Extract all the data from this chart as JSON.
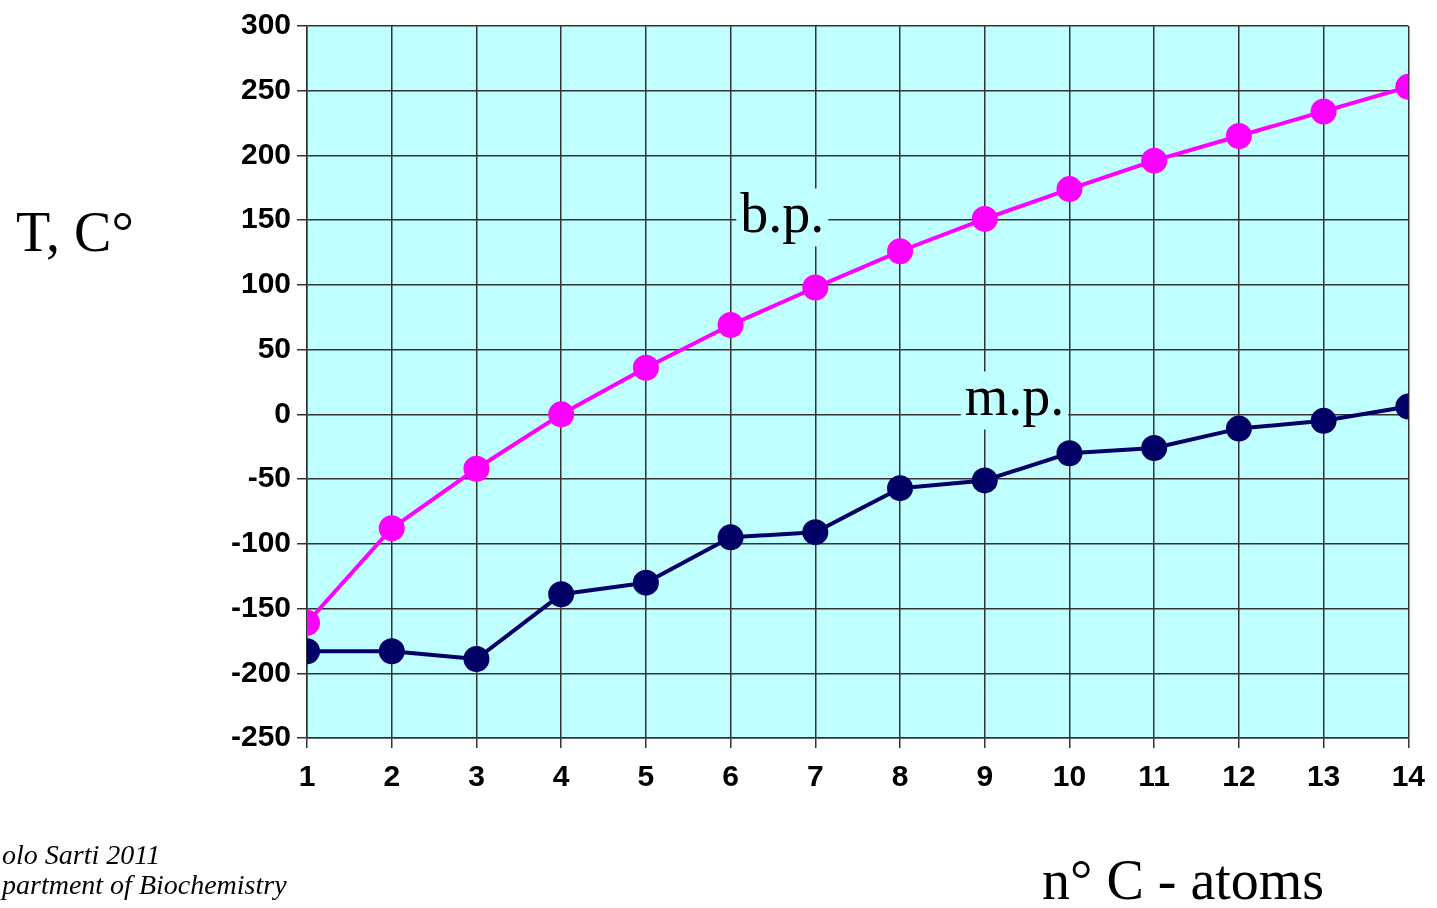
{
  "chart_data": {
    "type": "line",
    "x": [
      1,
      2,
      3,
      4,
      5,
      6,
      7,
      8,
      9,
      10,
      11,
      12,
      13,
      14
    ],
    "series": [
      {
        "name": "b.p.",
        "color": "#ff00ff",
        "values": [
          -161,
          -88,
          -42,
          0,
          36,
          69,
          98,
          126,
          151,
          174,
          196,
          215,
          234,
          253
        ]
      },
      {
        "name": "m.p.",
        "color": "#000066",
        "values": [
          -183,
          -183,
          -189,
          -139,
          -130,
          -95,
          -91,
          -57,
          -51,
          -30,
          -26,
          -11,
          -5,
          6
        ]
      }
    ],
    "xlim": [
      1,
      14
    ],
    "xticks": [
      1,
      2,
      3,
      4,
      5,
      6,
      7,
      8,
      9,
      10,
      11,
      12,
      13,
      14
    ],
    "ylim": [
      -250,
      300
    ],
    "yticks": [
      -250,
      -200,
      -150,
      -100,
      -50,
      0,
      50,
      100,
      150,
      200,
      250,
      300
    ],
    "xlabel": "n° C - atoms",
    "ylabel": "T, C°",
    "grid": true,
    "marker": "circle",
    "line_style": "solid",
    "legend": false,
    "annotations": [
      "olo Sarti 2011",
      "partment of Biochemistry"
    ]
  }
}
